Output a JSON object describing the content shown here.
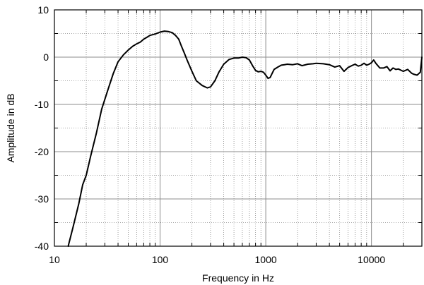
{
  "chart_data": {
    "type": "line",
    "title": "",
    "xlabel": "Frequency in Hz",
    "ylabel": "Amplitude in dB",
    "x_scale": "log",
    "xlim": [
      10,
      30000
    ],
    "ylim": [
      -40,
      10
    ],
    "x_tick_labels": [
      {
        "value": 10,
        "label": "10"
      },
      {
        "value": 100,
        "label": "100"
      },
      {
        "value": 1000,
        "label": "1000"
      },
      {
        "value": 10000,
        "label": "10000"
      }
    ],
    "y_tick_labels": [
      {
        "value": 10,
        "label": "10"
      },
      {
        "value": 0,
        "label": "0"
      },
      {
        "value": -10,
        "label": "-10"
      },
      {
        "value": -20,
        "label": "-20"
      },
      {
        "value": -30,
        "label": "-30"
      },
      {
        "value": -40,
        "label": "-40"
      }
    ],
    "grid": {
      "major": "solid",
      "minor": "dotted",
      "y_minor_step": 5
    },
    "colors": {
      "line": "#000000",
      "major_grid": "#8c8c8c",
      "minor_grid": "#8c8c8c",
      "frame": "#000000"
    },
    "series": [
      {
        "x": [
          13.5,
          15,
          17,
          18.5,
          20,
          22,
          25,
          28,
          32,
          36,
          40,
          45,
          50,
          55,
          60,
          65,
          70,
          75,
          80,
          90,
          100,
          110,
          120,
          130,
          140,
          150,
          160,
          170,
          180,
          200,
          220,
          250,
          280,
          300,
          330,
          360,
          400,
          450,
          500,
          550,
          600,
          650,
          700,
          750,
          800,
          850,
          900,
          950,
          1000,
          1050,
          1100,
          1150,
          1200,
          1300,
          1400,
          1500,
          1600,
          1800,
          2000,
          2200,
          2500,
          2800,
          3000,
          3500,
          4000,
          4500,
          5000,
          5500,
          6000,
          6500,
          7000,
          7500,
          8000,
          8500,
          9000,
          9500,
          10000,
          10500,
          11000,
          12000,
          13000,
          14000,
          15000,
          16000,
          17000,
          18000,
          20000,
          22000,
          24000,
          25000,
          27000,
          29000,
          30000
        ],
        "y": [
          -40,
          -36,
          -31,
          -27,
          -25,
          -21,
          -16,
          -11,
          -7,
          -3.5,
          -1,
          0.5,
          1.5,
          2.3,
          2.8,
          3.2,
          3.8,
          4.2,
          4.6,
          4.9,
          5.3,
          5.5,
          5.4,
          5.2,
          4.6,
          3.8,
          2.2,
          0.8,
          -0.6,
          -3,
          -5,
          -6,
          -6.5,
          -6.3,
          -5,
          -3.2,
          -1.5,
          -0.5,
          -0.2,
          -0.2,
          0,
          -0.1,
          -0.6,
          -1.8,
          -2.8,
          -3.1,
          -3,
          -3.2,
          -3.8,
          -4.5,
          -4.3,
          -3.4,
          -2.6,
          -2.1,
          -1.7,
          -1.6,
          -1.5,
          -1.6,
          -1.4,
          -1.8,
          -1.5,
          -1.4,
          -1.3,
          -1.4,
          -1.6,
          -2.1,
          -1.8,
          -3,
          -2.2,
          -1.8,
          -1.5,
          -1.9,
          -1.7,
          -1.3,
          -1.7,
          -1.5,
          -1.2,
          -0.6,
          -1.3,
          -2.3,
          -2.3,
          -2,
          -2.9,
          -2.3,
          -2.6,
          -2.5,
          -3,
          -2.6,
          -3.4,
          -3.6,
          -3.8,
          -3.2,
          0
        ]
      }
    ]
  }
}
